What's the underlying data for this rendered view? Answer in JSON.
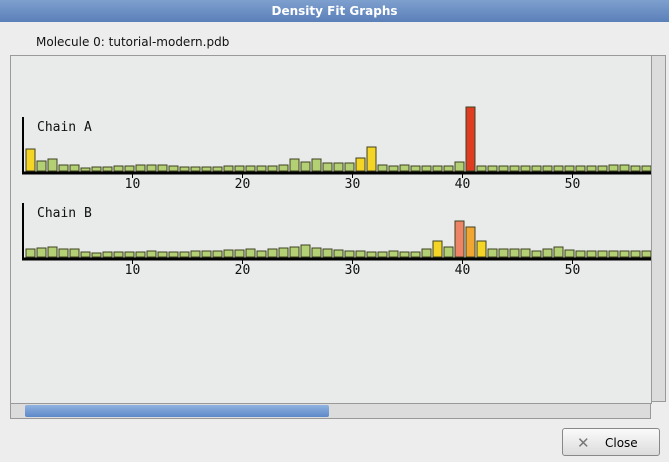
{
  "window": {
    "title": "Density Fit Graphs"
  },
  "molecule_label": "Molecule 0: tutorial-modern.pdb",
  "graphs": [
    {
      "label": "Chain A",
      "xticks": [
        10,
        20,
        30,
        40,
        50
      ],
      "values": [
        22,
        10,
        12,
        6,
        6,
        3,
        4,
        4,
        5,
        5,
        6,
        6,
        6,
        5,
        4,
        4,
        4,
        4,
        5,
        5,
        5,
        5,
        5,
        6,
        12,
        9,
        12,
        8,
        8,
        8,
        13,
        24,
        6,
        5,
        6,
        5,
        5,
        5,
        5,
        9,
        64,
        5,
        5,
        5,
        5,
        5,
        5,
        5,
        5,
        5,
        5,
        5,
        5,
        6,
        6,
        5,
        5
      ]
    },
    {
      "label": "Chain B",
      "xticks": [
        10,
        20,
        30,
        40,
        50
      ],
      "values": [
        8,
        9,
        10,
        8,
        8,
        5,
        4,
        5,
        5,
        5,
        5,
        6,
        5,
        5,
        5,
        6,
        6,
        6,
        7,
        7,
        8,
        6,
        8,
        9,
        10,
        12,
        9,
        8,
        7,
        6,
        6,
        5,
        5,
        6,
        5,
        5,
        8,
        16,
        10,
        36,
        30,
        16,
        8,
        8,
        8,
        8,
        6,
        8,
        10,
        7,
        6,
        6,
        6,
        6,
        6,
        6,
        6
      ]
    }
  ],
  "buttons": {
    "close": "Close"
  }
}
